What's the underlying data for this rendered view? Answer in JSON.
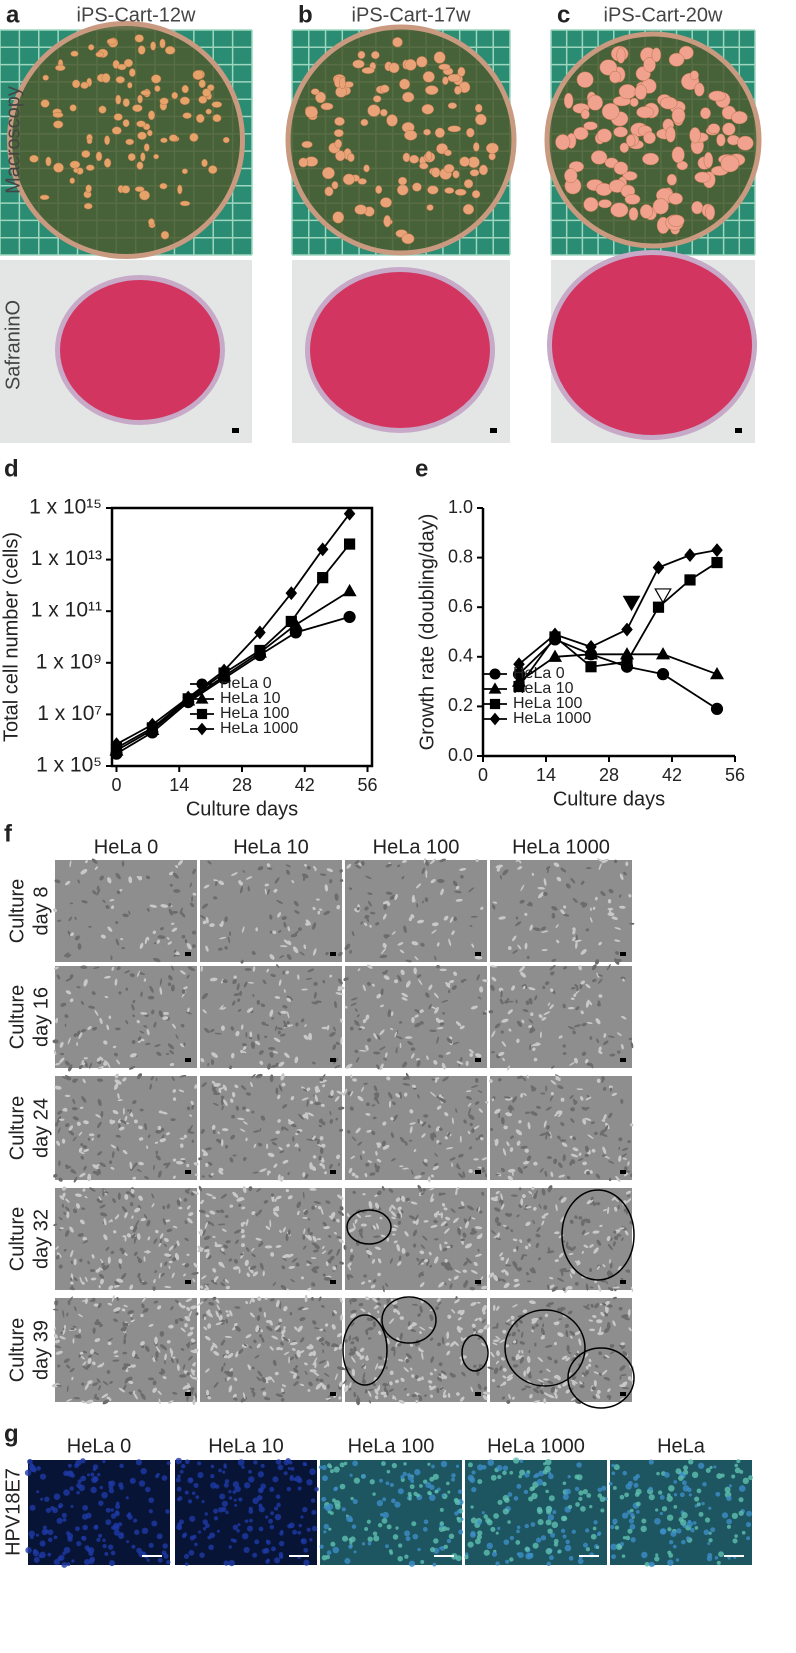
{
  "top": {
    "letters": [
      "a",
      "b",
      "c"
    ],
    "titles": [
      "iPS-Cart-12w",
      "iPS-Cart-17w",
      "iPS-Cart-20w"
    ],
    "row_labels": [
      "Macroscopy",
      "SafraninO"
    ]
  },
  "chart_data": [
    {
      "type": "line",
      "label": "d",
      "ylog": true,
      "frame": "box",
      "legend": "lower right",
      "ylabel": "Total cell number (cells)",
      "xlabel": "Culture days",
      "xlim": [
        -1,
        57
      ],
      "xticks": [
        0,
        14,
        28,
        42,
        56
      ],
      "ylim": [
        100000,
        1000000000000000
      ],
      "yticks": [
        {
          "value": 100000,
          "label": "1 x 10⁵"
        },
        {
          "value": 10000000,
          "label": "1 x 10⁷"
        },
        {
          "value": 1000000000,
          "label": "1 x 10⁹"
        },
        {
          "value": 100000000000,
          "label": "1 x 10¹¹"
        },
        {
          "value": 10000000000000,
          "label": "1 x 10¹³"
        },
        {
          "value": 1000000000000000,
          "label": "1 x 10¹⁵"
        }
      ],
      "series": [
        {
          "name": "HeLa 0",
          "marker": "circle",
          "color": "#000000",
          "x": [
            0,
            8,
            16,
            24,
            32,
            40,
            52
          ],
          "values": [
            300000,
            2000000,
            30000000,
            250000000,
            2000000000,
            15000000000,
            60000000000
          ]
        },
        {
          "name": "HeLa 10",
          "marker": "triangle",
          "color": "#000000",
          "x": [
            0,
            8,
            16,
            24,
            32,
            40,
            52
          ],
          "values": [
            400000,
            2500000,
            35000000,
            300000000,
            2500000000,
            30000000000,
            600000000000
          ]
        },
        {
          "name": "HeLa 100",
          "marker": "square",
          "color": "#000000",
          "x": [
            0,
            8,
            16,
            24,
            32,
            39,
            46,
            52
          ],
          "values": [
            500000,
            3000000,
            40000000,
            400000000,
            3000000000,
            40000000000,
            2000000000000,
            40000000000000
          ]
        },
        {
          "name": "HeLa 1000",
          "marker": "diamond",
          "color": "#000000",
          "x": [
            0,
            8,
            16,
            24,
            32,
            39,
            46,
            52
          ],
          "values": [
            700000,
            4000000,
            45000000,
            500000000,
            15000000000,
            500000000000,
            25000000000000,
            600000000000000
          ]
        }
      ]
    },
    {
      "type": "line",
      "label": "e",
      "ylog": false,
      "frame": "axes",
      "legend": "lower left",
      "ylabel": "Growth rate (doubling/day)",
      "xlabel": "Culture days",
      "xlim": [
        0,
        56
      ],
      "xticks": [
        0,
        14,
        28,
        42,
        56
      ],
      "ylim": [
        0,
        1
      ],
      "yticks": [
        {
          "value": 0,
          "label": "0.0"
        },
        {
          "value": 0.2,
          "label": "0.2"
        },
        {
          "value": 0.4,
          "label": "0.4"
        },
        {
          "value": 0.6,
          "label": "0.6"
        },
        {
          "value": 0.8,
          "label": "0.8"
        },
        {
          "value": 1,
          "label": "1.0"
        }
      ],
      "series": [
        {
          "name": "HeLa 0",
          "marker": "circle",
          "color": "#000000",
          "x": [
            8,
            16,
            24,
            32,
            40,
            52
          ],
          "values": [
            0.33,
            0.47,
            0.41,
            0.36,
            0.33,
            0.19
          ]
        },
        {
          "name": "HeLa 10",
          "marker": "triangle",
          "color": "#000000",
          "x": [
            8,
            16,
            24,
            32,
            40,
            52
          ],
          "values": [
            0.3,
            0.4,
            0.41,
            0.41,
            0.41,
            0.33
          ]
        },
        {
          "name": "HeLa 100",
          "marker": "square",
          "color": "#000000",
          "x": [
            8,
            16,
            24,
            32,
            39,
            46,
            52
          ],
          "values": [
            0.28,
            0.48,
            0.36,
            0.38,
            0.6,
            0.71,
            0.78
          ]
        },
        {
          "name": "HeLa 1000",
          "marker": "diamond",
          "color": "#000000",
          "x": [
            8,
            16,
            24,
            32,
            39,
            46,
            52
          ],
          "values": [
            0.37,
            0.49,
            0.44,
            0.51,
            0.76,
            0.81,
            0.83
          ]
        }
      ],
      "annotations": [
        {
          "x": 33,
          "y": 0.62,
          "filled": true
        },
        {
          "x": 40,
          "y": 0.65,
          "filled": false
        }
      ]
    }
  ],
  "f": {
    "letter": "f",
    "columns": [
      "HeLa 0",
      "HeLa 10",
      "HeLa 100",
      "HeLa 1000"
    ],
    "rows": [
      [
        "Culture",
        "day 8"
      ],
      [
        "Culture",
        "day 16"
      ],
      [
        "Culture",
        "day 24"
      ],
      [
        "Culture",
        "day 32"
      ],
      [
        "Culture",
        "day 39"
      ]
    ]
  },
  "g": {
    "letter": "g",
    "columns": [
      "HeLa 0",
      "HeLa 10",
      "HeLa 100",
      "HeLa 1000",
      "HeLa"
    ],
    "row_label": "HPV18E7"
  }
}
